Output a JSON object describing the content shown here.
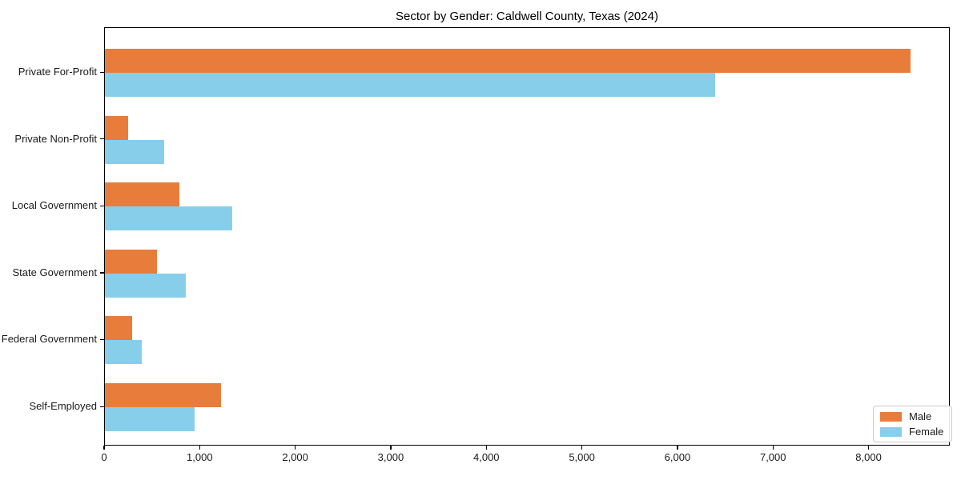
{
  "chart_data": {
    "type": "bar",
    "orientation": "horizontal",
    "title": "Sector by Gender: Caldwell County, Texas (2024)",
    "categories": [
      "Private For-Profit",
      "Private Non-Profit",
      "Local Government",
      "State Government",
      "Federal Government",
      "Self-Employed"
    ],
    "series": [
      {
        "name": "Male",
        "color": "#e87d3b",
        "values": [
          8430,
          240,
          780,
          545,
          285,
          1215
        ]
      },
      {
        "name": "Female",
        "color": "#87ceeb",
        "values": [
          6390,
          620,
          1335,
          845,
          385,
          935
        ]
      }
    ],
    "xlabel": "",
    "ylabel": "",
    "xlim": [
      0,
      8850
    ],
    "xticks": [
      0,
      1000,
      2000,
      3000,
      4000,
      5000,
      6000,
      7000,
      8000
    ],
    "xtick_format": "comma",
    "grid": false,
    "legend_position": "lower right",
    "axis_color": "#000000",
    "background_color": "#ffffff"
  }
}
